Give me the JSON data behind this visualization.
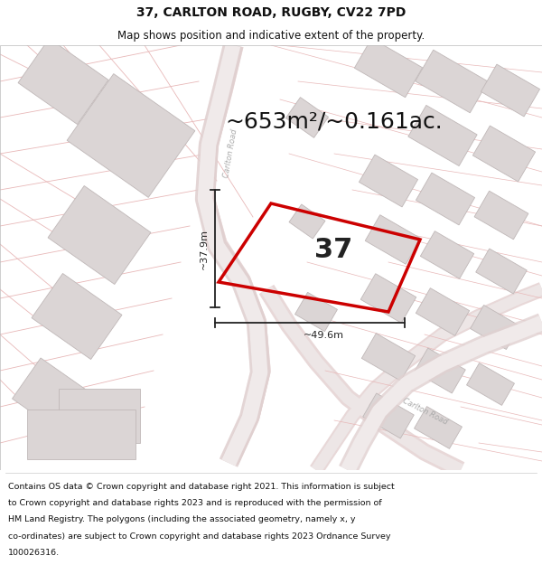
{
  "title": "37, CARLTON ROAD, RUGBY, CV22 7PD",
  "subtitle": "Map shows position and indicative extent of the property.",
  "area_text": "~653m²/~0.161ac.",
  "width_label": "~49.6m",
  "height_label": "~37.9m",
  "property_number": "37",
  "footer_lines": [
    "Contains OS data © Crown copyright and database right 2021. This information is subject",
    "to Crown copyright and database rights 2023 and is reproduced with the permission of",
    "HM Land Registry. The polygons (including the associated geometry, namely x, y",
    "co-ordinates) are subject to Crown copyright and database rights 2023 Ordnance Survey",
    "100026316."
  ],
  "map_bg": "#f5f0f0",
  "road_fill": "#f0eaea",
  "road_edge": "#e0c0c0",
  "plot_line": "#e8b8b8",
  "building_face": "#dbd5d5",
  "building_edge": "#c0b8b8",
  "property_color": "#cc0000",
  "dim_color": "#222222",
  "title_color": "#111111",
  "footer_color": "#111111",
  "white": "#ffffff",
  "carlton_road_label_color": "#aaaaaa",
  "title_fontsize": 10,
  "subtitle_fontsize": 8.5,
  "area_fontsize": 18,
  "num_fontsize": 22,
  "dim_fontsize": 8,
  "footer_fontsize": 6.8
}
